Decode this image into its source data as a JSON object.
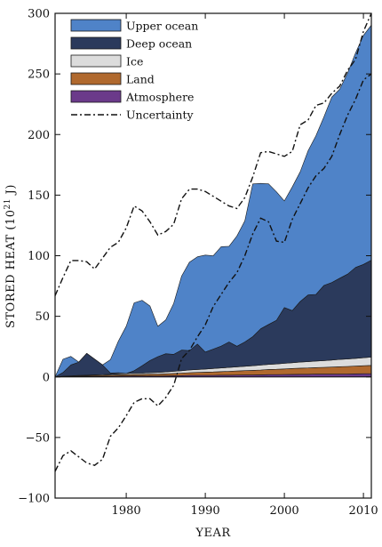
{
  "chart_data": {
    "type": "area",
    "xlabel": "YEAR",
    "ylabel": "STORED HEAT (10",
    "ylabel_exponent": "21",
    "ylabel_unit": " J)",
    "xlim": [
      1971,
      2011
    ],
    "ylim": [
      -100,
      300
    ],
    "xticks": [
      1980,
      1990,
      2000,
      2010
    ],
    "yticks": [
      -100,
      -50,
      0,
      50,
      100,
      150,
      200,
      250,
      300
    ],
    "grid": false,
    "legend_position": "top-left",
    "x": [
      1971,
      1972,
      1973,
      1974,
      1975,
      1976,
      1977,
      1978,
      1979,
      1980,
      1981,
      1982,
      1983,
      1984,
      1985,
      1986,
      1987,
      1988,
      1989,
      1990,
      1991,
      1992,
      1993,
      1994,
      1995,
      1996,
      1997,
      1998,
      1999,
      2000,
      2001,
      2002,
      2003,
      2004,
      2005,
      2006,
      2007,
      2008,
      2009,
      2010,
      2011
    ],
    "series": [
      {
        "name": "Atmosphere",
        "color": "#6b3a8a",
        "values": [
          0,
          0.2,
          0.3,
          0.4,
          0.4,
          0.5,
          0.5,
          0.6,
          0.7,
          0.8,
          0.9,
          0.8,
          0.9,
          0.8,
          0.9,
          1.0,
          1.1,
          1.3,
          1.3,
          1.3,
          1.3,
          1.4,
          1.4,
          1.5,
          1.6,
          1.6,
          1.7,
          1.9,
          1.9,
          2.0,
          2.1,
          2.2,
          2.2,
          2.3,
          2.3,
          2.3,
          2.4,
          2.4,
          2.5,
          2.6,
          2.7
        ]
      },
      {
        "name": "Land",
        "color": "#b0692e",
        "values": [
          0,
          0.3,
          0.4,
          0.5,
          0.6,
          0.7,
          0.8,
          0.9,
          1.0,
          1.1,
          1.2,
          1.3,
          1.4,
          1.5,
          1.6,
          1.8,
          2.0,
          2.2,
          2.4,
          2.6,
          2.8,
          3.0,
          3.2,
          3.4,
          3.6,
          3.8,
          4.0,
          4.2,
          4.4,
          4.6,
          4.8,
          5.0,
          5.2,
          5.4,
          5.6,
          5.8,
          6.0,
          6.2,
          6.4,
          6.6,
          6.8
        ]
      },
      {
        "name": "Ice",
        "color": "#dcdcdc",
        "values": [
          0,
          0.1,
          0.2,
          0.3,
          0.4,
          0.5,
          0.6,
          0.7,
          0.8,
          0.9,
          1.0,
          1.1,
          1.2,
          1.4,
          1.6,
          1.8,
          2.0,
          2.2,
          2.4,
          2.6,
          2.8,
          3.0,
          3.2,
          3.4,
          3.6,
          3.8,
          4.0,
          4.2,
          4.4,
          4.6,
          4.8,
          5.0,
          5.2,
          5.4,
          5.6,
          5.8,
          6.0,
          6.2,
          6.4,
          6.6,
          6.8
        ]
      },
      {
        "name": "Deep ocean",
        "color": "#2b3a5c",
        "values": [
          0,
          3,
          9,
          11,
          18,
          13,
          8,
          1,
          1,
          0,
          2,
          6,
          10,
          13,
          15,
          14,
          17,
          16,
          21,
          14,
          16,
          18,
          21,
          17,
          20,
          24,
          30,
          33,
          36,
          46,
          43,
          50,
          55,
          55,
          62,
          64,
          67,
          70,
          75,
          77,
          80
        ]
      },
      {
        "name": "Upper ocean",
        "color": "#4f83c8",
        "values": [
          0,
          11,
          7,
          0,
          0,
          0,
          0,
          11,
          26,
          39,
          56,
          54,
          45,
          25,
          28,
          42,
          61,
          73,
          72,
          80,
          77,
          82,
          79,
          91,
          100,
          126,
          120,
          116,
          106,
          88,
          102,
          107,
          119,
          131,
          139,
          153,
          156,
          166,
          177,
          189,
          194
        ]
      }
    ],
    "uncertainty": {
      "name": "Uncertainty",
      "upper": {
        "x": [
          1971,
          1972,
          1973,
          1974,
          1975,
          1976,
          1977,
          1978,
          1979,
          1980,
          1981,
          1982,
          1983,
          1984,
          1985,
          1986,
          1987,
          1988,
          1989,
          1990,
          1991,
          1992,
          1993,
          1994,
          1995,
          1996,
          1997,
          1998,
          1999,
          2000,
          2001,
          2002,
          2003,
          2004,
          2005,
          2006,
          2007,
          2008,
          2009,
          2010,
          2011
        ],
        "y": [
          67,
          82,
          96,
          96,
          95,
          89,
          98,
          107,
          111,
          123,
          141,
          137,
          128,
          117,
          120,
          126,
          147,
          155,
          155,
          153,
          149,
          145,
          141,
          139,
          148,
          165,
          185,
          186,
          184,
          182,
          186,
          208,
          212,
          224,
          226,
          234,
          240,
          253,
          262,
          285,
          300
        ]
      },
      "lower": {
        "x": [
          1971,
          1972,
          1973,
          1974,
          1975,
          1976,
          1977,
          1978,
          1979,
          1980,
          1981,
          1982,
          1983,
          1984,
          1985,
          1986,
          1987,
          1988,
          1989,
          1990,
          1991,
          1992,
          1993,
          1994,
          1995,
          1996,
          1997,
          1998,
          1999,
          2000,
          2001,
          2002,
          2003,
          2004,
          2005,
          2006,
          2007,
          2008,
          2009,
          2010,
          2011
        ],
        "y": [
          -78,
          -65,
          -61,
          -66,
          -71,
          -73,
          -68,
          -49,
          -42,
          -32,
          -21,
          -18,
          -18,
          -24,
          -17,
          -7,
          15,
          22,
          33,
          43,
          58,
          68,
          78,
          86,
          100,
          118,
          131,
          128,
          112,
          111,
          130,
          143,
          156,
          166,
          172,
          182,
          200,
          216,
          229,
          245,
          250
        ]
      }
    }
  },
  "legend": {
    "items": [
      {
        "label": "Upper ocean",
        "color": "#4f83c8"
      },
      {
        "label": "Deep ocean",
        "color": "#2b3a5c"
      },
      {
        "label": "Ice",
        "color": "#dcdcdc"
      },
      {
        "label": "Land",
        "color": "#b0692e"
      },
      {
        "label": "Atmosphere",
        "color": "#6b3a8a"
      }
    ],
    "uncertainty_label": "Uncertainty"
  }
}
